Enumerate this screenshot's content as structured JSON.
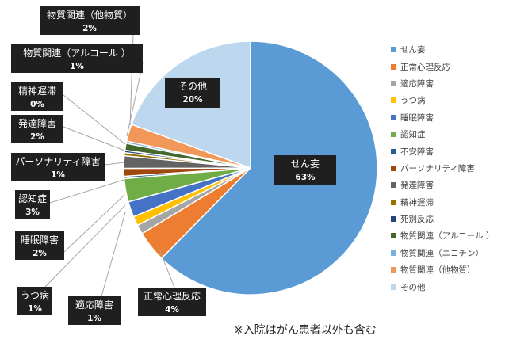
{
  "chart_data": {
    "type": "pie",
    "start_angle_deg": 0,
    "slices": [
      {
        "name": "せん妄",
        "value": 63,
        "label": "63%",
        "color": "#5B9BD5"
      },
      {
        "name": "正常心理反応",
        "value": 4,
        "label": "4%",
        "color": "#ED7D31"
      },
      {
        "name": "適応障害",
        "value": 1.2,
        "label": "1%",
        "color": "#A5A5A5"
      },
      {
        "name": "うつ病",
        "value": 1.2,
        "label": "1%",
        "color": "#FFC000"
      },
      {
        "name": "睡眠障害",
        "value": 2,
        "label": "2%",
        "color": "#4472C4"
      },
      {
        "name": "認知症",
        "value": 3,
        "label": "3%",
        "color": "#70AD47"
      },
      {
        "name": "不安障害",
        "value": 0.3,
        "label": "",
        "color": "#255E91"
      },
      {
        "name": "パーソナリティ障害",
        "value": 1,
        "label": "1%",
        "color": "#9E480E"
      },
      {
        "name": "発達障害",
        "value": 1.6,
        "label": "2%",
        "color": "#636363"
      },
      {
        "name": "精神遅滞",
        "value": 0.4,
        "label": "0%",
        "color": "#997300"
      },
      {
        "name": "死別反応",
        "value": 0.3,
        "label": "",
        "color": "#264478"
      },
      {
        "name": "物質関連（アルコール ）",
        "value": 0.9,
        "label": "1%",
        "color": "#43682B"
      },
      {
        "name": "物質関連（ニコチン）",
        "value": 0.3,
        "label": "",
        "color": "#7CAFDD"
      },
      {
        "name": "物質関連（他物質）",
        "value": 2.2,
        "label": "2%",
        "color": "#F1975A"
      },
      {
        "name": "その他",
        "value": 19.6,
        "label": "20%",
        "color": "#BDD7EE"
      }
    ],
    "legend_position": "right"
  },
  "footnote": "※入院はがん患者以外も含む"
}
